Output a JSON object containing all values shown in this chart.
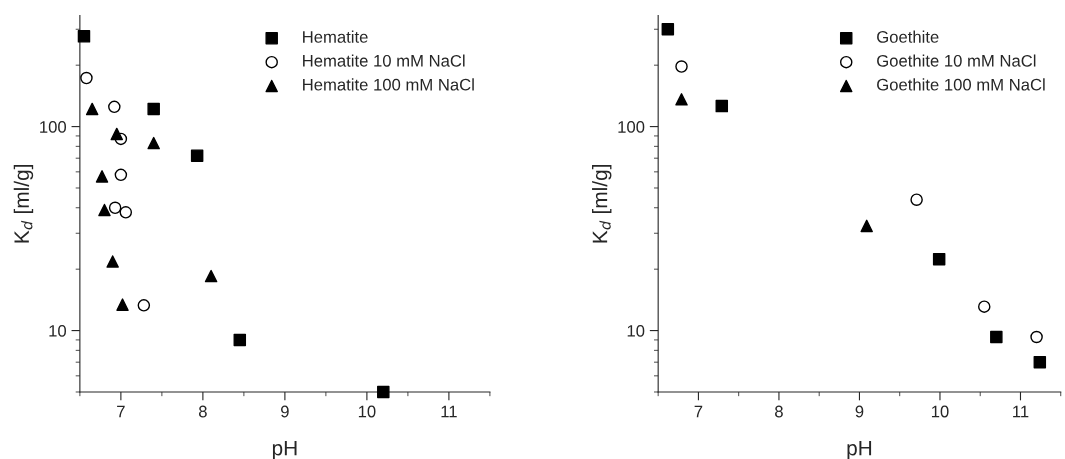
{
  "chart_data": [
    {
      "type": "scatter",
      "xlabel": "pH",
      "ylabel": "K$_{d}$ [ml/g]",
      "log": "y",
      "xlim": [
        6.5,
        11.5
      ],
      "xticks": [
        7,
        8,
        9,
        10,
        11
      ],
      "ylim": [
        5,
        350
      ],
      "yticks": [
        10,
        100
      ],
      "grid": false,
      "legend": "top right",
      "series": [
        {
          "name": "Hematite",
          "color": "#000000",
          "marker": "square",
          "x": [
            6.55,
            7.4,
            7.93,
            8.45,
            10.2
          ],
          "values": [
            277,
            122,
            72,
            9.0,
            5
          ]
        },
        {
          "name": "Hematite 10 mM NaCl",
          "color": "#000000",
          "marker": "circle",
          "x": [
            6.58,
            6.92,
            7.0,
            7.0,
            6.93,
            7.06,
            7.28
          ],
          "values": [
            173,
            125,
            87,
            58,
            40,
            38,
            13.3
          ]
        },
        {
          "name": "Hematite 100 mM NaCl",
          "color": "#000000",
          "marker": "triangle",
          "x": [
            6.65,
            6.95,
            7.4,
            6.77,
            6.8,
            6.9,
            7.02,
            8.1
          ],
          "values": [
            122,
            92,
            83,
            57,
            39,
            21.8,
            13.4,
            18.5
          ]
        }
      ]
    },
    {
      "type": "scatter",
      "xlabel": "pH",
      "ylabel": "K$_{d}$ [ml/g]",
      "log": "y",
      "xlim": [
        6.5,
        11.5
      ],
      "xticks": [
        7,
        8,
        9,
        10,
        11
      ],
      "ylim": [
        5,
        350
      ],
      "yticks": [
        10,
        100
      ],
      "grid": false,
      "legend": "top right",
      "series": [
        {
          "name": "Goethite",
          "color": "#000000",
          "marker": "square",
          "x": [
            6.62,
            7.29,
            9.99,
            10.7,
            11.24
          ],
          "values": [
            300,
            126,
            22.4,
            9.3,
            7.0
          ]
        },
        {
          "name": "Goethite 10 mM NaCl",
          "color": "#000000",
          "marker": "circle",
          "x": [
            6.79,
            9.71,
            10.55,
            11.2
          ],
          "values": [
            197,
            43.8,
            13.1,
            9.3
          ]
        },
        {
          "name": "Goethite 100 mM NaCl",
          "color": "#000000",
          "marker": "triangle",
          "x": [
            6.79,
            9.09
          ],
          "values": [
            136,
            32.6
          ]
        }
      ]
    }
  ]
}
